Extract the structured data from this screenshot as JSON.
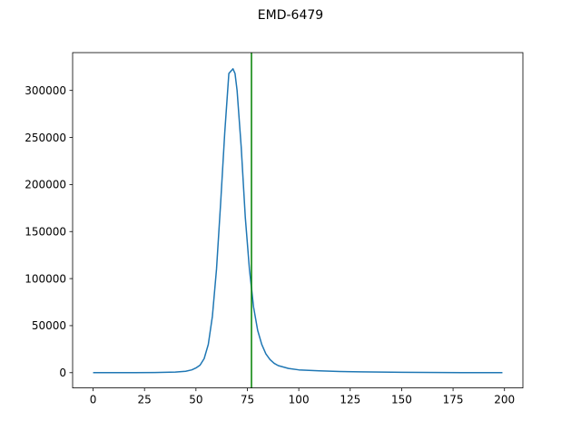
{
  "chart_data": {
    "type": "line",
    "title": "EMD-6479",
    "xlabel": "",
    "ylabel": "",
    "xlim": [
      -9.95,
      208.95
    ],
    "ylim": [
      -16200,
      340200
    ],
    "xticks": [
      0,
      25,
      50,
      75,
      100,
      125,
      150,
      175,
      200
    ],
    "xtick_labels": [
      "0",
      "25",
      "50",
      "75",
      "100",
      "125",
      "150",
      "175",
      "200"
    ],
    "yticks": [
      0,
      50000,
      100000,
      150000,
      200000,
      250000,
      300000
    ],
    "ytick_labels": [
      "0",
      "50000",
      "100000",
      "150000",
      "200000",
      "250000",
      "300000"
    ],
    "grid": false,
    "series": [
      {
        "color": "#1f77b4",
        "x": [
          0,
          10,
          20,
          30,
          40,
          45,
          48,
          50,
          52,
          54,
          56,
          58,
          60,
          62,
          64,
          66,
          68,
          69,
          70,
          72,
          74,
          76,
          78,
          80,
          82,
          84,
          86,
          88,
          90,
          95,
          100,
          110,
          120,
          130,
          140,
          150,
          160,
          170,
          180,
          190,
          199
        ],
        "y": [
          0,
          0,
          0,
          200,
          600,
          1500,
          3000,
          5000,
          8000,
          15000,
          30000,
          60000,
          110000,
          180000,
          255000,
          318000,
          323000,
          318000,
          300000,
          240000,
          165000,
          110000,
          70000,
          45000,
          30000,
          20000,
          14000,
          10000,
          7500,
          4500,
          3000,
          2000,
          1300,
          900,
          600,
          400,
          300,
          200,
          100,
          50,
          0
        ]
      }
    ],
    "vlines": [
      {
        "x": 77,
        "color": "#008000"
      }
    ]
  }
}
